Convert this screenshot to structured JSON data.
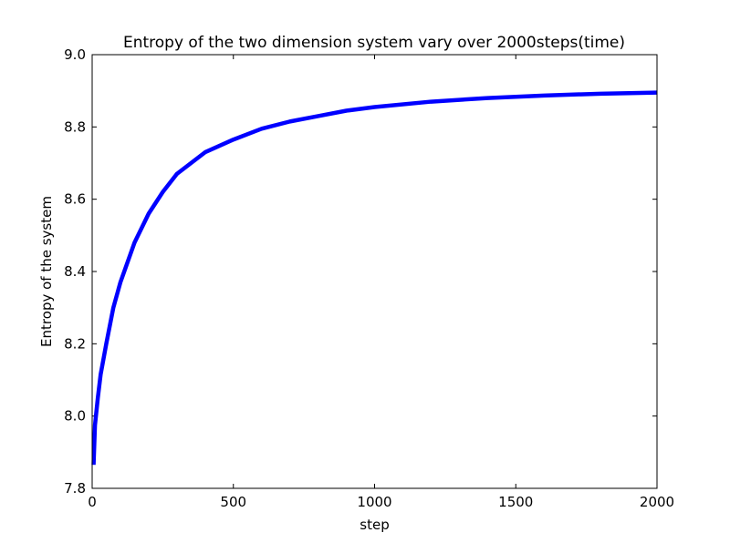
{
  "chart_data": {
    "type": "line",
    "title": "Entropy of the two dimension system vary over 2000steps(time)",
    "xlabel": "step",
    "ylabel": "Entropy of the system",
    "xlim": [
      0,
      2000
    ],
    "ylim": [
      7.8,
      9.0
    ],
    "xticks": [
      0,
      500,
      1000,
      1500,
      2000
    ],
    "xtick_labels": [
      "0",
      "500",
      "1000",
      "1500",
      "2000"
    ],
    "yticks": [
      7.8,
      8.0,
      8.2,
      8.4,
      8.6,
      8.8,
      9.0
    ],
    "ytick_labels": [
      "7.8",
      "8.0",
      "8.2",
      "8.4",
      "8.6",
      "8.8",
      "9.0"
    ],
    "grid": false,
    "series": [
      {
        "color": "#0000ff",
        "x": [
          5,
          10,
          20,
          30,
          50,
          75,
          100,
          150,
          200,
          250,
          300,
          400,
          500,
          600,
          700,
          800,
          900,
          1000,
          1200,
          1400,
          1600,
          1800,
          2000
        ],
        "y": [
          7.865,
          7.975,
          8.05,
          8.115,
          8.2,
          8.3,
          8.37,
          8.48,
          8.56,
          8.62,
          8.67,
          8.73,
          8.765,
          8.795,
          8.815,
          8.83,
          8.845,
          8.855,
          8.87,
          8.88,
          8.887,
          8.892,
          8.895
        ]
      }
    ]
  }
}
